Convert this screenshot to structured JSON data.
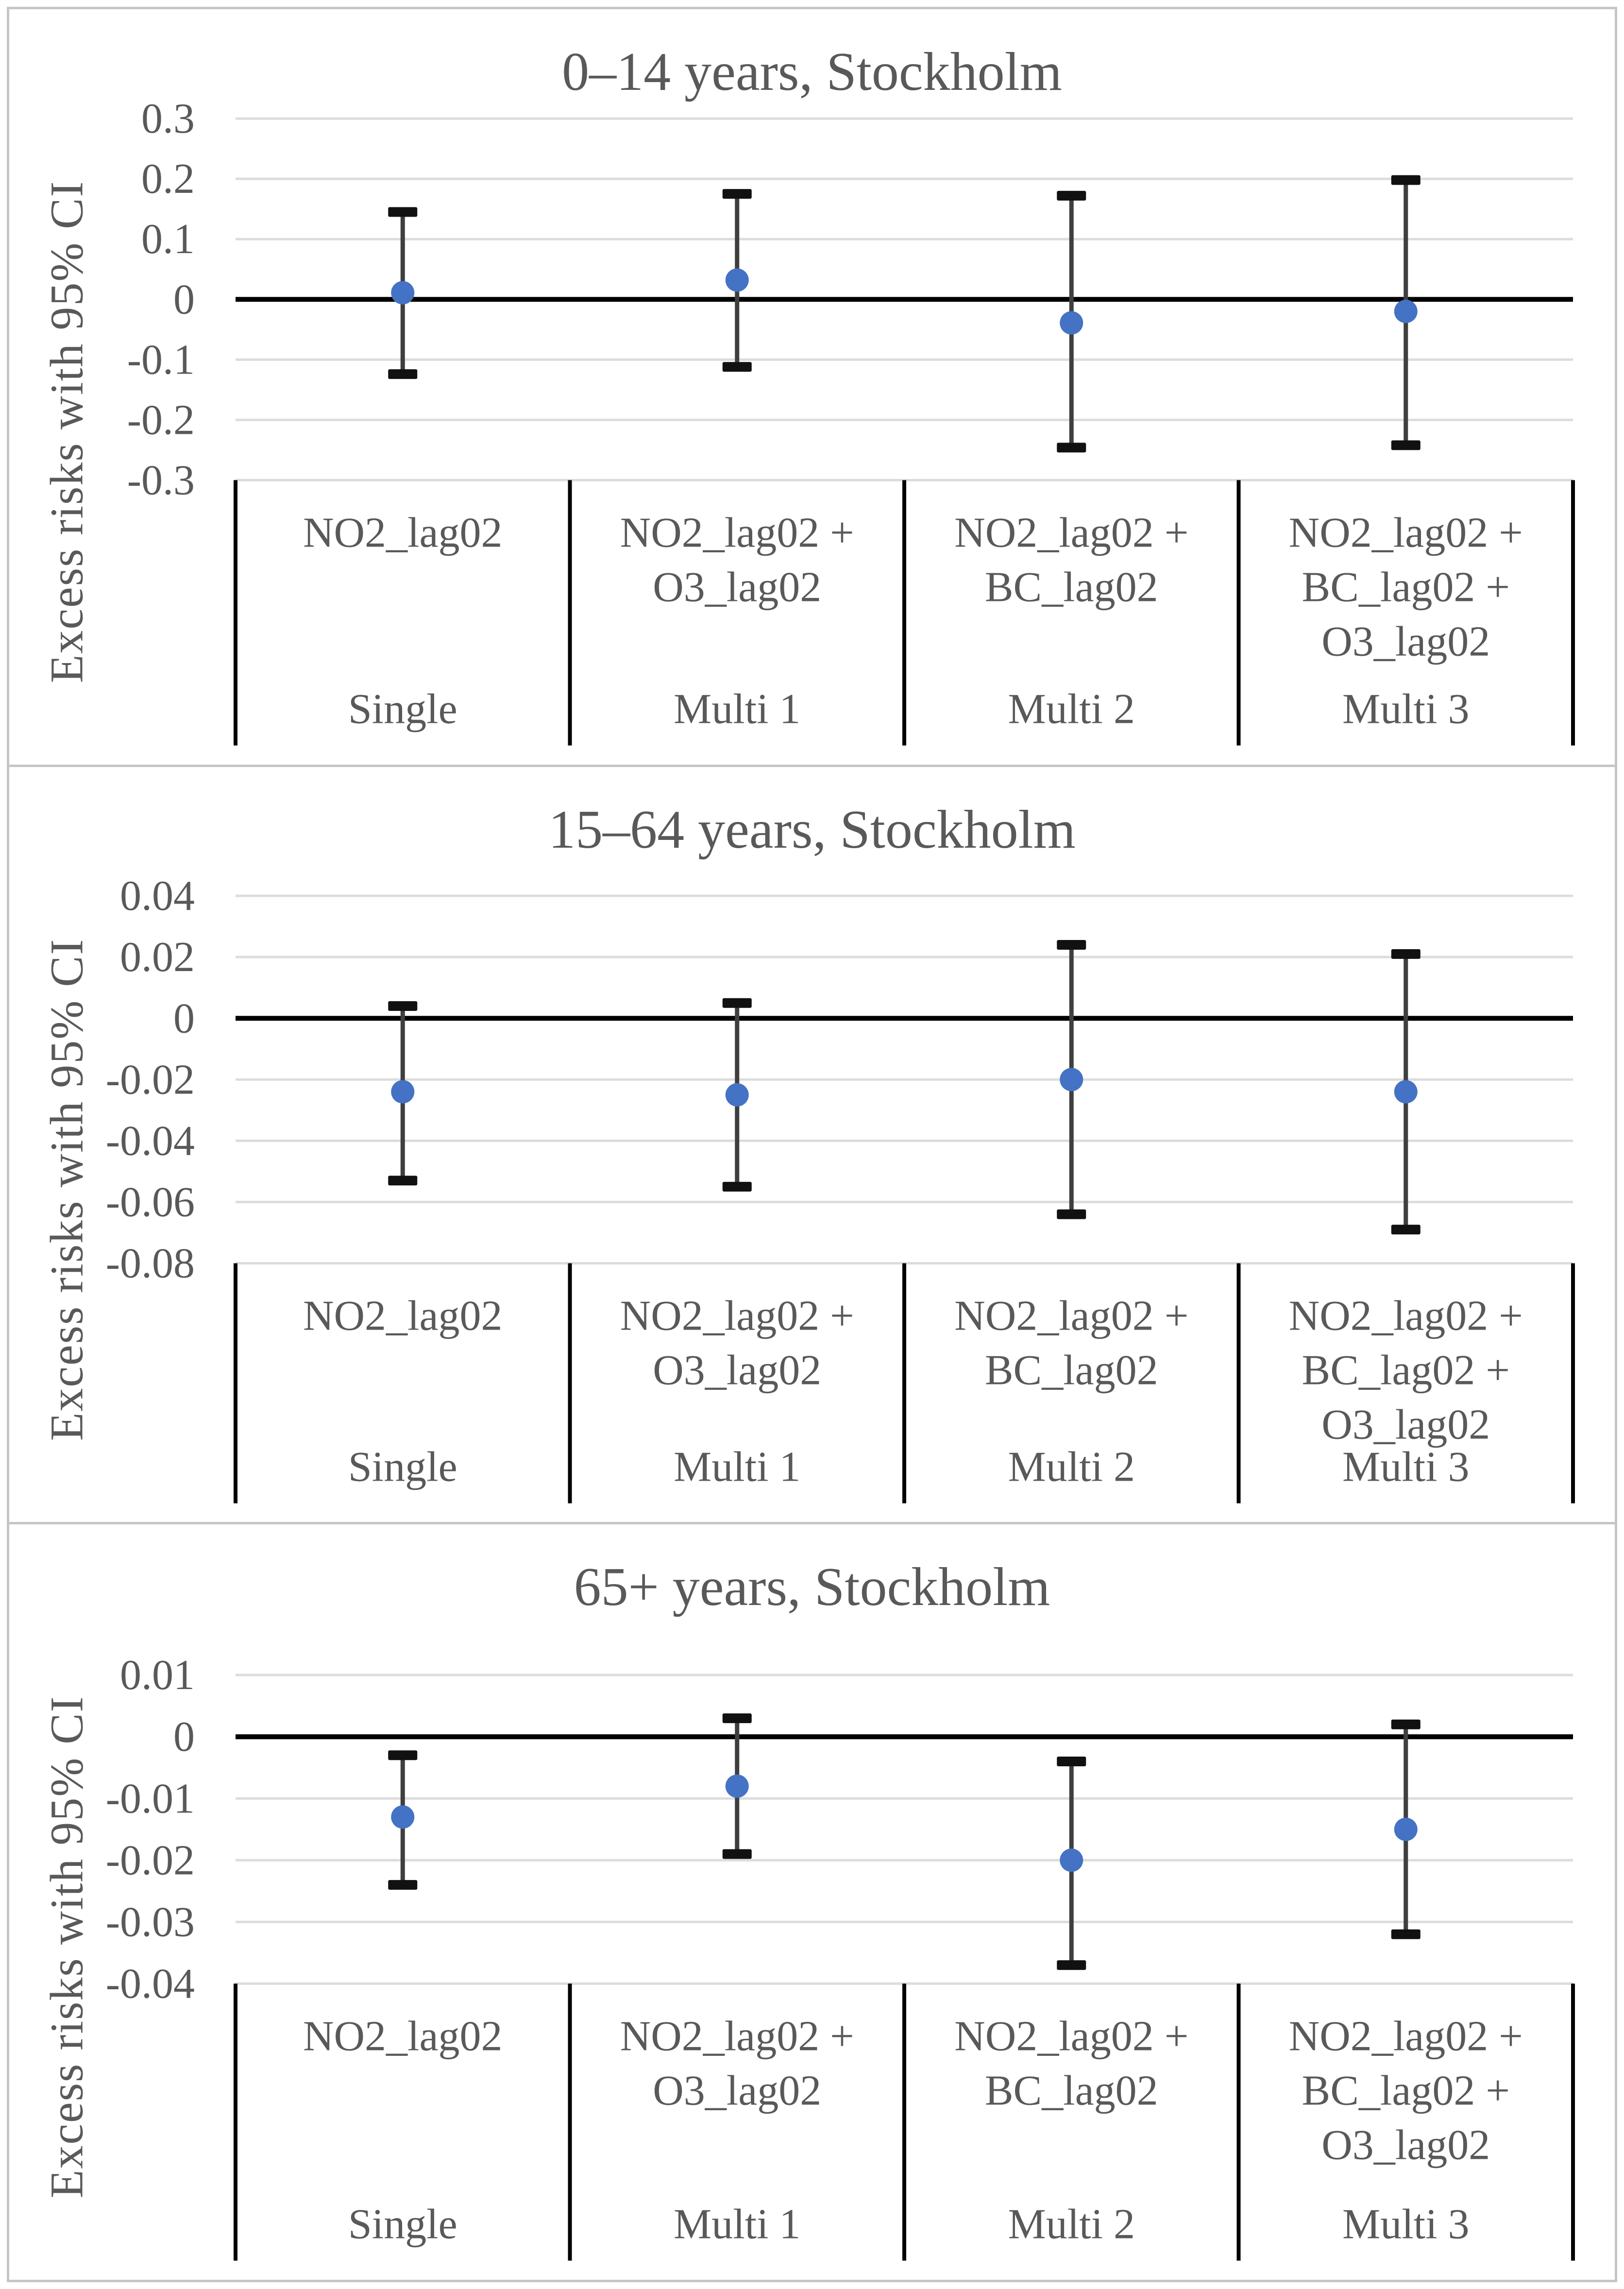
{
  "figure": {
    "y_axis_title": "Excess risks with 95% CI",
    "style": {
      "marker_color": "#4472C4",
      "errorbar_color": "#3F3F3F",
      "cap_color": "#111111",
      "zero_line_color": "#000000",
      "gridline_color": "#DCDCDC",
      "text_color": "#595959",
      "panel_border_color": "#C6C4C4",
      "background": "#FFFFFF"
    }
  },
  "chart_data": [
    {
      "type": "scatter",
      "title": "0–14 years, Stockholm",
      "ylabel": "Excess risks with 95% CI",
      "ylim": [
        -0.3,
        0.3
      ],
      "ytick_labels": [
        "0.3",
        "0.2",
        "0.1",
        "0",
        "-0.1",
        "-0.2",
        "-0.3"
      ],
      "grid": true,
      "legend": "none",
      "x_categories": [
        {
          "pollutants": [
            "NO2_lag02"
          ],
          "model": "Single"
        },
        {
          "pollutants": [
            "NO2_lag02 +",
            "O3_lag02"
          ],
          "model": "Multi 1"
        },
        {
          "pollutants": [
            "NO2_lag02 +",
            "BC_lag02"
          ],
          "model": "Multi 2"
        },
        {
          "pollutants": [
            "NO2_lag02 +",
            "BC_lag02 +",
            "O3_lag02"
          ],
          "model": "Multi 3"
        }
      ],
      "series": [
        {
          "name": "Excess risk with 95% CI",
          "points": [
            {
              "x": "Single",
              "y": 0.011,
              "ci_low": -0.124,
              "ci_high": 0.145
            },
            {
              "x": "Multi 1",
              "y": 0.032,
              "ci_low": -0.112,
              "ci_high": 0.175
            },
            {
              "x": "Multi 2",
              "y": -0.039,
              "ci_low": -0.246,
              "ci_high": 0.172
            },
            {
              "x": "Multi 3",
              "y": -0.02,
              "ci_low": -0.242,
              "ci_high": 0.198
            }
          ]
        }
      ]
    },
    {
      "type": "scatter",
      "title": "15–64 years, Stockholm",
      "ylabel": "Excess risks with 95% CI",
      "ylim": [
        -0.08,
        0.04
      ],
      "ytick_labels": [
        "0.04",
        "0.02",
        "0",
        "-0.02",
        "-0.04",
        "-0.06",
        "-0.08"
      ],
      "grid": true,
      "legend": "none",
      "x_categories": [
        {
          "pollutants": [
            "NO2_lag02"
          ],
          "model": "Single"
        },
        {
          "pollutants": [
            "NO2_lag02 +",
            "O3_lag02"
          ],
          "model": "Multi 1"
        },
        {
          "pollutants": [
            "NO2_lag02 +",
            "BC_lag02"
          ],
          "model": "Multi 2"
        },
        {
          "pollutants": [
            "NO2_lag02 +",
            "BC_lag02 +",
            "O3_lag02"
          ],
          "model": "Multi 3"
        }
      ],
      "series": [
        {
          "name": "Excess risk with 95% CI",
          "points": [
            {
              "x": "Single",
              "y": -0.024,
              "ci_low": -0.053,
              "ci_high": 0.004
            },
            {
              "x": "Multi 1",
              "y": -0.025,
              "ci_low": -0.055,
              "ci_high": 0.005
            },
            {
              "x": "Multi 2",
              "y": -0.02,
              "ci_low": -0.064,
              "ci_high": 0.024
            },
            {
              "x": "Multi 3",
              "y": -0.024,
              "ci_low": -0.069,
              "ci_high": 0.021
            }
          ]
        }
      ]
    },
    {
      "type": "scatter",
      "title": "65+ years, Stockholm",
      "ylabel": "Excess risks with 95% CI",
      "ylim": [
        -0.04,
        0.01
      ],
      "ytick_labels": [
        "0.01",
        "0",
        "-0.01",
        "-0.02",
        "-0.03",
        "-0.04"
      ],
      "grid": true,
      "legend": "none",
      "x_categories": [
        {
          "pollutants": [
            "NO2_lag02"
          ],
          "model": "Single"
        },
        {
          "pollutants": [
            "NO2_lag02 +",
            "O3_lag02"
          ],
          "model": "Multi 1"
        },
        {
          "pollutants": [
            "NO2_lag02 +",
            "BC_lag02"
          ],
          "model": "Multi 2"
        },
        {
          "pollutants": [
            "NO2_lag02 +",
            "BC_lag02 +",
            "O3_lag02"
          ],
          "model": "Multi 3"
        }
      ],
      "series": [
        {
          "name": "Excess risk with 95% CI",
          "points": [
            {
              "x": "Single",
              "y": -0.013,
              "ci_low": -0.024,
              "ci_high": -0.003
            },
            {
              "x": "Multi 1",
              "y": -0.008,
              "ci_low": -0.019,
              "ci_high": 0.003
            },
            {
              "x": "Multi 2",
              "y": -0.02,
              "ci_low": -0.037,
              "ci_high": -0.004
            },
            {
              "x": "Multi 3",
              "y": -0.015,
              "ci_low": -0.032,
              "ci_high": 0.002
            }
          ]
        }
      ]
    }
  ]
}
